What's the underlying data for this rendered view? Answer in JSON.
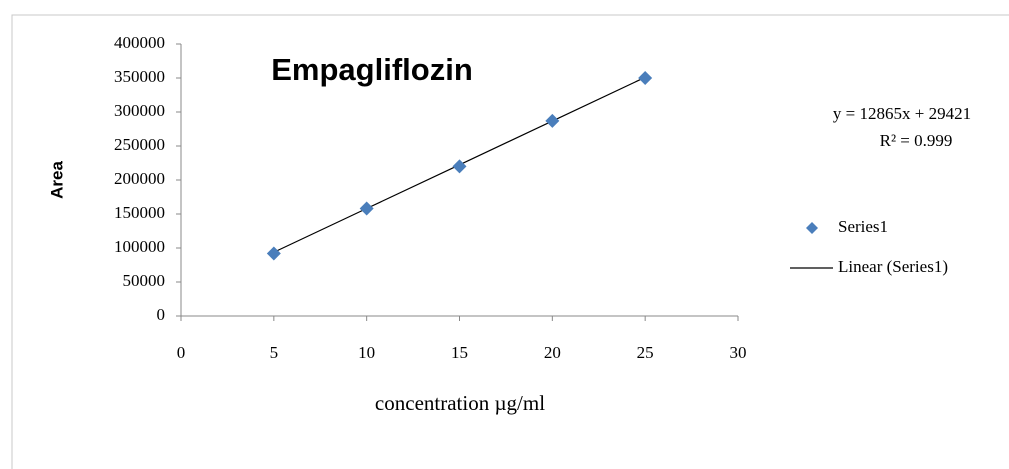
{
  "chart_data": {
    "type": "scatter",
    "title": "Empagliflozin",
    "x_label": "concentration µg/ml",
    "y_label": "Area",
    "x": [
      5,
      10,
      15,
      20,
      25
    ],
    "series": [
      {
        "name": "Series1",
        "type": "scatter",
        "color": "#4a7ebb",
        "values": [
          92000,
          158000,
          220000,
          287000,
          350000
        ]
      },
      {
        "name": "Linear (Series1)",
        "type": "line",
        "color": "#000000",
        "values": [
          93746,
          158071,
          222396,
          286721,
          351046
        ]
      }
    ],
    "annotations": [
      "y = 12865x + 29421",
      "R² = 0.999"
    ],
    "xlim": [
      0,
      30
    ],
    "xticks": [
      0,
      5,
      10,
      15,
      20,
      25,
      30
    ],
    "ylim": [
      0,
      400000
    ],
    "yticks": [
      0,
      50000,
      100000,
      150000,
      200000,
      250000,
      300000,
      350000,
      400000
    ],
    "grid": false,
    "legend": "right"
  }
}
